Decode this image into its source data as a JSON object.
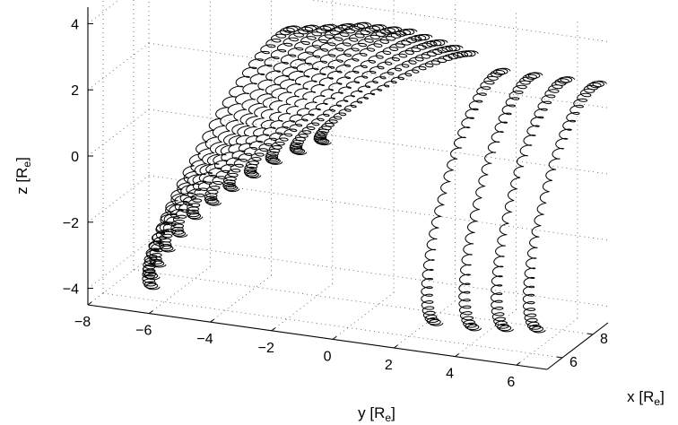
{
  "chart_data": {
    "type": "line",
    "projection": "3d",
    "title": "",
    "axes": {
      "x": {
        "label": "x",
        "unit": "R",
        "unit_subscript": "e",
        "ticks": [
          6,
          8
        ]
      },
      "y": {
        "label": "y",
        "unit": "R",
        "unit_subscript": "e",
        "ticks": [
          -8,
          -6,
          -4,
          -2,
          0,
          2,
          4,
          6
        ]
      },
      "z": {
        "label": "z",
        "unit": "R",
        "unit_subscript": "e",
        "ticks": [
          -4,
          -2,
          0,
          2,
          4
        ]
      }
    },
    "xlim": [
      5,
      9
    ],
    "ylim": [
      -8,
      7
    ],
    "zlim": [
      -4.5,
      4.5
    ],
    "grid": true,
    "grid_style": "dotted",
    "line_color": "#000000",
    "series_description": "helical charged-particle trajectories (gyrating along field lines)",
    "series": [
      {
        "x": 6.5,
        "y_range": [
          -6.6,
          -2.0
        ],
        "z_range": [
          -4.3,
          4.1
        ]
      },
      {
        "x": 6.5,
        "y_range": [
          -6.6,
          -1.4
        ],
        "z_range": [
          -4.0,
          4.2
        ]
      },
      {
        "x": 6.5,
        "y_range": [
          -6.4,
          -0.8
        ],
        "z_range": [
          -3.6,
          4.3
        ]
      },
      {
        "x": 6.5,
        "y_range": [
          -6.1,
          -0.2
        ],
        "z_range": [
          -3.1,
          4.4
        ]
      },
      {
        "x": 6.5,
        "y_range": [
          -5.7,
          0.3
        ],
        "z_range": [
          -2.6,
          4.5
        ]
      },
      {
        "x": 6.5,
        "y_range": [
          -5.2,
          0.8
        ],
        "z_range": [
          -2.0,
          4.5
        ]
      },
      {
        "x": 6.5,
        "y_range": [
          -4.6,
          1.3
        ],
        "z_range": [
          -1.5,
          4.5
        ]
      },
      {
        "x": 6.5,
        "y_range": [
          -4.0,
          1.8
        ],
        "z_range": [
          -1.0,
          4.5
        ]
      },
      {
        "x": 6.5,
        "y_range": [
          -3.3,
          2.3
        ],
        "z_range": [
          -0.5,
          4.4
        ]
      },
      {
        "x": 6.5,
        "y_range": [
          -2.6,
          2.8
        ],
        "z_range": [
          0.0,
          4.3
        ]
      },
      {
        "x": 6.5,
        "y_range": [
          -1.8,
          3.3
        ],
        "z_range": [
          0.4,
          4.2
        ]
      },
      {
        "x": 6.5,
        "y_range": [
          -1.0,
          3.8
        ],
        "z_range": [
          0.8,
          4.1
        ]
      },
      {
        "x": 7.0,
        "y_range": [
          2.4,
          4.6
        ],
        "z_range": [
          -4.4,
          3.5
        ]
      },
      {
        "x": 7.5,
        "y_range": [
          3.4,
          5.4
        ],
        "z_range": [
          -4.6,
          3.3
        ]
      },
      {
        "x": 8.0,
        "y_range": [
          4.2,
          6.2
        ],
        "z_range": [
          -4.7,
          3.1
        ]
      },
      {
        "x": 8.5,
        "y_range": [
          5.0,
          7.0
        ],
        "z_range": [
          -4.8,
          2.9
        ]
      }
    ]
  }
}
